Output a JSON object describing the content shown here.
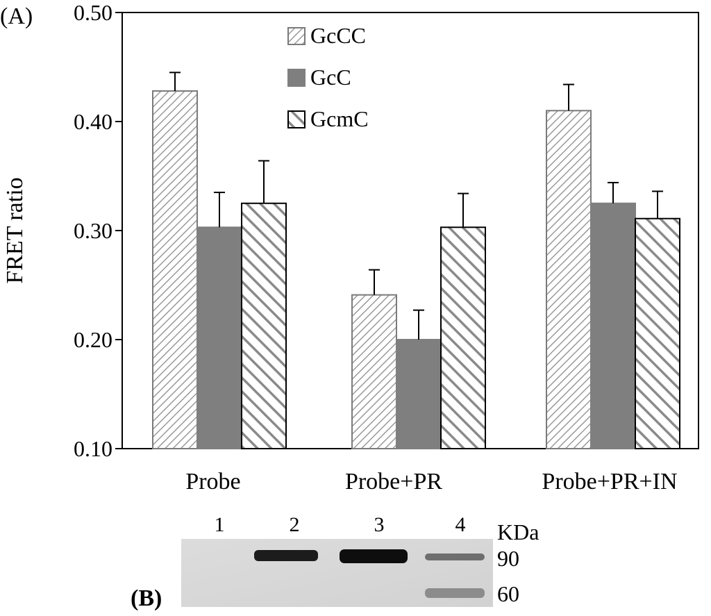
{
  "panel_a_label": "(A)",
  "panel_b_label": "(B)",
  "chart_data": {
    "type": "bar",
    "ylabel": "FRET ratio",
    "xlabel": "",
    "ylim": [
      0.1,
      0.5
    ],
    "yticks": [
      "0.10",
      "0.20",
      "0.30",
      "0.40",
      "0.50"
    ],
    "categories": [
      "Probe",
      "Probe+PR",
      "Probe+PR+IN"
    ],
    "legend_position": "top-center",
    "series": [
      {
        "name": "GcCC",
        "values": [
          0.428,
          0.241,
          0.41
        ],
        "errors": [
          0.017,
          0.023,
          0.024
        ],
        "pattern": "fine-diagonal-light",
        "color": "#9a9a9a"
      },
      {
        "name": "GcC",
        "values": [
          0.303,
          0.2,
          0.325
        ],
        "errors": [
          0.032,
          0.027,
          0.019
        ],
        "pattern": "solid",
        "color": "#7f7f7f"
      },
      {
        "name": "GcmC",
        "values": [
          0.325,
          0.303,
          0.311
        ],
        "errors": [
          0.039,
          0.031,
          0.025
        ],
        "pattern": "bold-diagonal",
        "color": "#8a8a8a"
      }
    ]
  },
  "gel": {
    "lane_labels": [
      "1",
      "2",
      "3",
      "4"
    ],
    "unit_label": "KDa",
    "marker_labels": [
      "90",
      "60"
    ]
  }
}
